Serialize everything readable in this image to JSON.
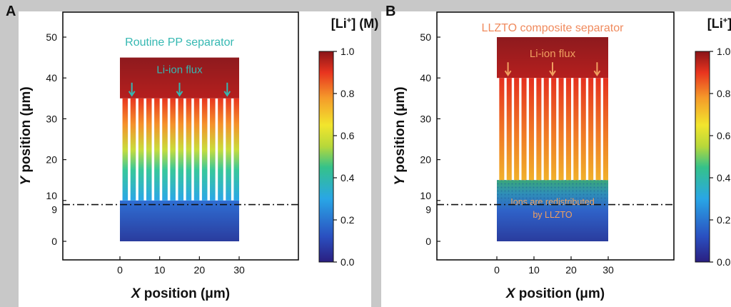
{
  "panels": [
    {
      "letter": "A",
      "title": "Routine PP separator",
      "title_color": "#35b8b2",
      "flux_label": "Li-ion flux",
      "flux_color": "#35b8b2",
      "bottom_annotation": [],
      "annotation_color": "#f0a060"
    },
    {
      "letter": "B",
      "title": "LLZTO composite separator",
      "title_color": "#f08a5d",
      "flux_label": "Li-ion flux",
      "flux_color": "#f0a060",
      "bottom_annotation": [
        "Ions are redistributed",
        "by LLZTO"
      ],
      "annotation_color": "#f0a060"
    }
  ],
  "colorbar": {
    "title_prefix": "[Li",
    "title_sup": "+",
    "title_suffix": "] (M)",
    "ticks": [
      "0.0",
      "0.2",
      "0.4",
      "0.6",
      "0.8",
      "1.0"
    ],
    "range": [
      0,
      1
    ]
  },
  "chart_data": [
    {
      "type": "heatmap",
      "panel": "A",
      "title": "Routine PP separator",
      "xlabel": "X position (μm)",
      "ylabel": "Y position (μm)",
      "x_ticks": [
        "0",
        "10",
        "20",
        "30"
      ],
      "y_ticks": [
        "0",
        "9",
        "10",
        "20",
        "30",
        "40",
        "50"
      ],
      "xlim": [
        -15,
        45
      ],
      "ylim": [
        -5,
        55
      ],
      "separator_y": 9,
      "domain": {
        "x": [
          0,
          30
        ],
        "y": [
          0,
          45
        ]
      },
      "reservoir": {
        "y": [
          35,
          45
        ]
      },
      "channels_region": {
        "y": [
          10,
          35
        ],
        "count": 15
      },
      "bottom_region": {
        "y": [
          0,
          10
        ]
      },
      "flux_arrows_x": [
        3,
        15,
        27
      ],
      "concentration_profile": [
        {
          "y": 45,
          "c": 0.97
        },
        {
          "y": 35,
          "c": 0.92
        },
        {
          "y": 30,
          "c": 0.78
        },
        {
          "y": 25,
          "c": 0.62
        },
        {
          "y": 20,
          "c": 0.5
        },
        {
          "y": 15,
          "c": 0.35
        },
        {
          "y": 10,
          "c": 0.22
        },
        {
          "y": 5,
          "c": 0.14
        },
        {
          "y": 0,
          "c": 0.08
        }
      ]
    },
    {
      "type": "heatmap",
      "panel": "B",
      "title": "LLZTO composite separator",
      "xlabel": "X position (μm)",
      "ylabel": "Y position (μm)",
      "x_ticks": [
        "0",
        "10",
        "20",
        "30"
      ],
      "y_ticks": [
        "0",
        "9",
        "10",
        "20",
        "30",
        "40",
        "50"
      ],
      "xlim": [
        -15,
        45
      ],
      "ylim": [
        -5,
        55
      ],
      "separator_y": 9,
      "domain": {
        "x": [
          0,
          30
        ],
        "y": [
          0,
          50
        ]
      },
      "reservoir": {
        "y": [
          40,
          50
        ]
      },
      "channels_region": {
        "y": [
          15,
          40
        ],
        "count": 15
      },
      "bottom_region": {
        "y": [
          0,
          15
        ]
      },
      "flux_arrows_x": [
        3,
        15,
        27
      ],
      "concentration_profile": [
        {
          "y": 50,
          "c": 0.95
        },
        {
          "y": 40,
          "c": 0.92
        },
        {
          "y": 30,
          "c": 0.85
        },
        {
          "y": 20,
          "c": 0.75
        },
        {
          "y": 15,
          "c": 0.65
        },
        {
          "y": 13,
          "c": 0.42
        },
        {
          "y": 10,
          "c": 0.3
        },
        {
          "y": 5,
          "c": 0.18
        },
        {
          "y": 0,
          "c": 0.1
        }
      ]
    }
  ]
}
